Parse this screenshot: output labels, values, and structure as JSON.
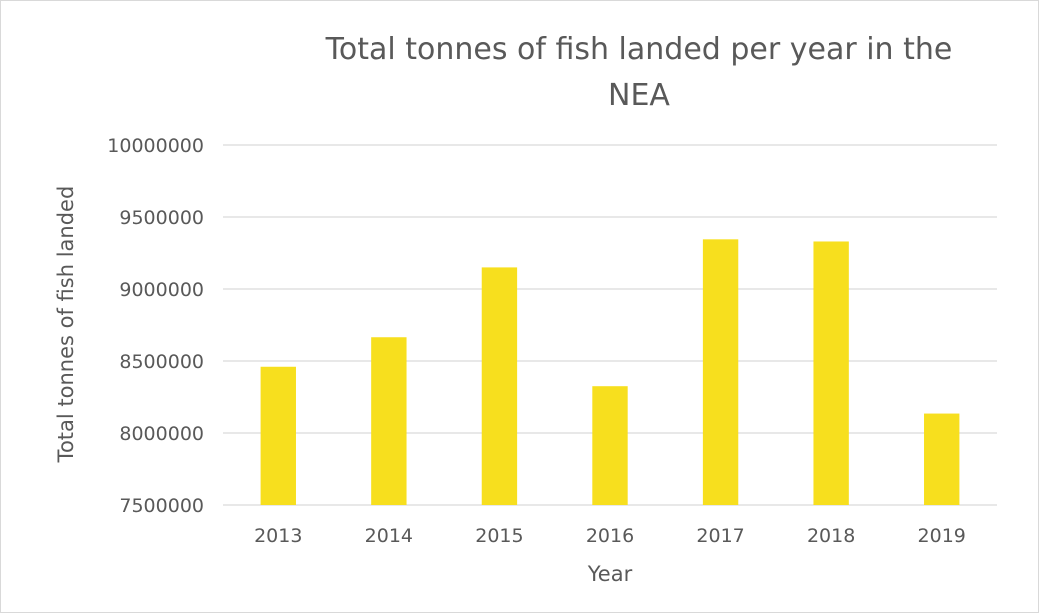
{
  "chart_data": {
    "type": "bar",
    "title": "Total tonnes of fish landed per year in the NEA",
    "title_lines": [
      "Total tonnes of fish landed per year in the",
      "NEA"
    ],
    "xlabel": "Year",
    "ylabel": "Total tonnes of fish landed",
    "categories": [
      "2013",
      "2014",
      "2015",
      "2016",
      "2017",
      "2018",
      "2019"
    ],
    "values": [
      8460000,
      8665000,
      9150000,
      8325000,
      9345000,
      9330000,
      8135000
    ],
    "ylim": [
      7500000,
      10000000
    ],
    "yticks": [
      7500000,
      8000000,
      8500000,
      9000000,
      9500000,
      10000000
    ],
    "ytick_labels": [
      "7500000",
      "8000000",
      "8500000",
      "9000000",
      "9500000",
      "10000000"
    ],
    "grid": true,
    "legend": "none",
    "bar_color": "#f7df1e",
    "grid_color": "#d9d9d9",
    "text_color": "#595959"
  }
}
